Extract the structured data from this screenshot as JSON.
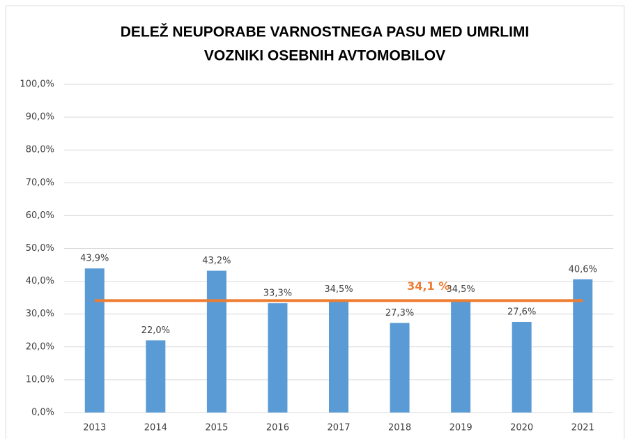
{
  "chart_data": {
    "type": "bar",
    "title": [
      "DELEŽ NEUPORABE VARNOSTNEGA PASU MED UMRLIMI",
      "VOZNIKI OSEBNIH AVTOMOBILOV"
    ],
    "categories": [
      "2013",
      "2014",
      "2015",
      "2016",
      "2017",
      "2018",
      "2019",
      "2020",
      "2021"
    ],
    "values": [
      43.9,
      22.0,
      43.2,
      33.3,
      34.5,
      27.3,
      34.5,
      27.6,
      40.6
    ],
    "value_labels": [
      "43,9%",
      "22,0%",
      "43,2%",
      "33,3%",
      "34,5%",
      "27,3%",
      "34,5%",
      "27,6%",
      "40,6%"
    ],
    "color": "#5b9bd5",
    "ylim": [
      0,
      100
    ],
    "yticks": [
      {
        "value": 0,
        "label": "0,0%"
      },
      {
        "value": 10,
        "label": "10,0%"
      },
      {
        "value": 20,
        "label": "20,0%"
      },
      {
        "value": 30,
        "label": "30,0%"
      },
      {
        "value": 40,
        "label": "40,0%"
      },
      {
        "value": 50,
        "label": "50,0%"
      },
      {
        "value": 60,
        "label": "60,0%"
      },
      {
        "value": 70,
        "label": "70,0%"
      },
      {
        "value": 80,
        "label": "80,0%"
      },
      {
        "value": 90,
        "label": "90,0%"
      },
      {
        "value": 100,
        "label": "100,0%"
      }
    ],
    "grid": true,
    "reference_line": {
      "value": 34.1,
      "label": "34,1 %",
      "color": "#ed7d31"
    }
  }
}
